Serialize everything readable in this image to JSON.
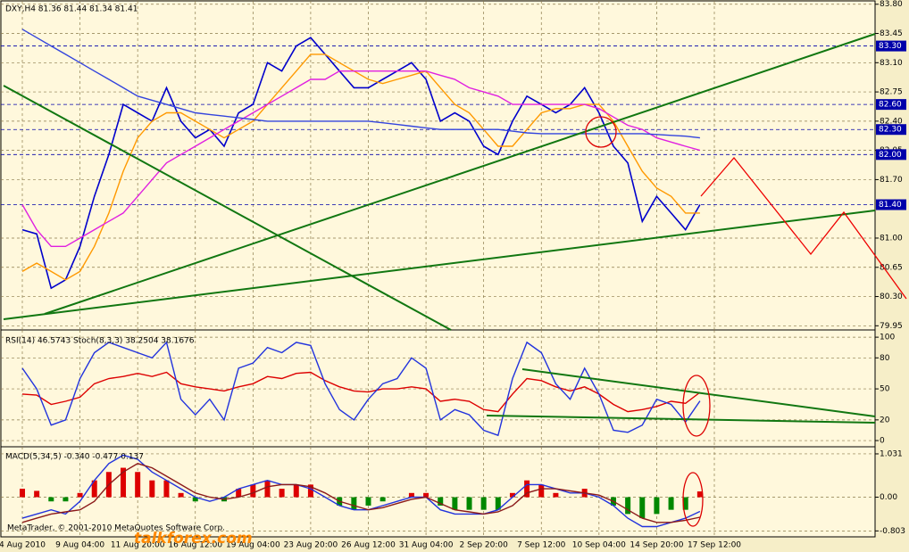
{
  "chart_data": [
    {
      "type": "line",
      "title": "DXY,H4  81.36 81.44 81.34 81.41",
      "categories": [
        "4 Aug 2010",
        null,
        null,
        null,
        "9 Aug 04:00",
        null,
        null,
        null,
        "11 Aug 20:00",
        null,
        null,
        null,
        "16 Aug 12:00",
        null,
        null,
        null,
        "19 Aug 04:00",
        null,
        null,
        null,
        "23 Aug 20:00",
        null,
        null,
        null,
        "26 Aug 12:00",
        null,
        null,
        null,
        "31 Aug 04:00",
        null,
        null,
        null,
        "2 Sep 20:00",
        null,
        null,
        null,
        "7 Sep 12:00",
        null,
        null,
        null,
        "10 Sep 04:00",
        null,
        null,
        null,
        "14 Sep 20:00",
        null,
        null,
        null,
        "17 Sep 12:00"
      ],
      "ylim": [
        79.9,
        83.84
      ],
      "yticks": [
        {
          "value": 83.8,
          "label": "83.80"
        },
        {
          "value": 83.45,
          "label": "83.45"
        },
        {
          "value": 83.1,
          "label": "83.10"
        },
        {
          "value": 82.75,
          "label": "82.75"
        },
        {
          "value": 82.4,
          "label": "82.40"
        },
        {
          "value": 82.05,
          "label": "82.05"
        },
        {
          "value": 81.7,
          "label": "81.70"
        },
        {
          "value": 81,
          "label": "81.00"
        },
        {
          "value": 80.65,
          "label": "80.65"
        },
        {
          "value": 80.3,
          "label": "80.30"
        },
        {
          "value": 79.95,
          "label": "79.95"
        }
      ],
      "levels": [
        {
          "value": 83.3,
          "label": "83.30"
        },
        {
          "value": 82.6,
          "label": "82.60"
        },
        {
          "value": 82.3,
          "label": "82.30"
        },
        {
          "value": 82,
          "label": "82.00"
        },
        {
          "value": 81.4,
          "label": "81.40"
        }
      ],
      "grid": true,
      "series": [
        {
          "name": "DXY",
          "color": "#0000cc",
          "values": [
            81.1,
            81.05,
            80.4,
            80.5,
            80.9,
            81.5,
            82.0,
            82.6,
            82.5,
            82.4,
            82.8,
            82.4,
            82.2,
            82.3,
            82.1,
            82.5,
            82.6,
            83.1,
            83.0,
            83.3,
            83.4,
            83.2,
            83.0,
            82.8,
            82.8,
            82.9,
            83.0,
            83.1,
            82.9,
            82.4,
            82.5,
            82.4,
            82.1,
            82.0,
            82.4,
            82.7,
            82.6,
            82.5,
            82.6,
            82.8,
            82.5,
            82.1,
            81.9,
            81.2,
            81.5,
            81.3,
            81.1,
            81.4,
            null
          ]
        },
        {
          "name": "MA",
          "color": "#ff9900",
          "values": [
            80.6,
            80.7,
            80.6,
            80.5,
            80.6,
            80.9,
            81.3,
            81.8,
            82.2,
            82.4,
            82.5,
            82.5,
            82.4,
            82.3,
            82.2,
            82.3,
            82.4,
            82.6,
            82.8,
            83.0,
            83.2,
            83.2,
            83.1,
            83.0,
            82.9,
            82.85,
            82.9,
            82.95,
            83.0,
            82.8,
            82.6,
            82.5,
            82.3,
            82.1,
            82.1,
            82.3,
            82.5,
            82.55,
            82.55,
            82.6,
            82.6,
            82.4,
            82.1,
            81.8,
            81.6,
            81.5,
            81.3,
            81.3,
            null
          ]
        },
        {
          "name": "MA2",
          "color": "#e020e0",
          "values": [
            81.4,
            81.1,
            80.9,
            80.9,
            81.0,
            81.1,
            81.2,
            81.3,
            81.5,
            81.7,
            81.9,
            82.0,
            82.1,
            82.2,
            82.3,
            82.4,
            82.5,
            82.6,
            82.7,
            82.8,
            82.9,
            82.9,
            83.0,
            83.0,
            83.0,
            83.0,
            83.0,
            83.0,
            83.0,
            82.95,
            82.9,
            82.8,
            82.75,
            82.7,
            82.6,
            82.6,
            82.6,
            82.6,
            82.6,
            82.6,
            82.55,
            82.45,
            82.35,
            82.3,
            82.2,
            82.15,
            82.1,
            82.05,
            null
          ]
        },
        {
          "name": "MA3",
          "color": "#3344dd",
          "values": [
            83.5,
            83.4,
            83.3,
            83.2,
            83.1,
            83.0,
            82.9,
            82.8,
            82.7,
            82.65,
            82.6,
            82.55,
            82.5,
            82.48,
            82.46,
            82.44,
            82.42,
            82.4,
            82.4,
            82.4,
            82.4,
            82.4,
            82.4,
            82.4,
            82.4,
            82.38,
            82.36,
            82.34,
            82.32,
            82.3,
            82.3,
            82.3,
            82.3,
            82.3,
            82.28,
            82.26,
            82.25,
            82.25,
            82.25,
            82.25,
            82.25,
            82.25,
            82.25,
            82.25,
            82.24,
            82.23,
            82.22,
            82.2,
            null
          ]
        }
      ]
    },
    {
      "type": "line",
      "title": "RSI(14) 46.5743  Stoch(8,3,3) 38.2504 38.1676",
      "ylim": [
        -6,
        107
      ],
      "yticks": [
        0,
        20,
        50,
        80,
        100
      ],
      "grid": true,
      "series": [
        {
          "name": "RSI(14)",
          "color": "#dd0000",
          "values": [
            45,
            44,
            35,
            38,
            42,
            55,
            60,
            62,
            65,
            62,
            66,
            55,
            52,
            50,
            48,
            52,
            55,
            62,
            60,
            65,
            66,
            58,
            52,
            48,
            47,
            50,
            50,
            52,
            50,
            38,
            40,
            38,
            30,
            28,
            45,
            60,
            58,
            52,
            48,
            52,
            45,
            35,
            28,
            30,
            33,
            38,
            36,
            46.6,
            null
          ]
        },
        {
          "name": "Stoch(8,3,3)",
          "color": "#2233dd",
          "values": [
            70,
            50,
            15,
            20,
            60,
            85,
            95,
            90,
            85,
            80,
            95,
            40,
            25,
            40,
            20,
            70,
            75,
            90,
            85,
            95,
            92,
            55,
            30,
            20,
            40,
            55,
            60,
            80,
            70,
            20,
            30,
            25,
            10,
            5,
            60,
            95,
            85,
            55,
            40,
            70,
            45,
            10,
            8,
            15,
            40,
            35,
            18,
            38.3,
            null
          ]
        }
      ]
    },
    {
      "type": "combo",
      "title": "MACD(5,34,5) -0.340 -0.477 0.137",
      "ylim": [
        -0.944,
        1.2
      ],
      "yticks": [
        {
          "value": 1.031,
          "label": "1.031"
        },
        {
          "value": 0,
          "label": "0.00"
        },
        {
          "value": -0.803,
          "label": "-0.803"
        }
      ],
      "grid": true,
      "color_up": "#dd0000",
      "color_down": "#008800",
      "series": [
        {
          "name": "Histogram",
          "type": "bar",
          "values": [
            0.2,
            0.15,
            -0.1,
            -0.1,
            0.1,
            0.4,
            0.6,
            0.7,
            0.6,
            0.4,
            0.4,
            0.1,
            -0.1,
            0.0,
            -0.1,
            0.2,
            0.3,
            0.4,
            0.2,
            0.3,
            0.3,
            0.0,
            -0.2,
            -0.3,
            -0.2,
            -0.1,
            0.0,
            0.1,
            0.1,
            -0.2,
            -0.3,
            -0.3,
            -0.3,
            -0.3,
            0.1,
            0.4,
            0.3,
            0.1,
            0.0,
            0.2,
            0.0,
            -0.2,
            -0.4,
            -0.5,
            -0.4,
            -0.3,
            -0.3,
            0.137,
            null
          ]
        },
        {
          "name": "MACD",
          "type": "line",
          "color": "#2233dd",
          "values": [
            -0.5,
            -0.4,
            -0.3,
            -0.4,
            -0.1,
            0.4,
            0.8,
            1.0,
            0.9,
            0.6,
            0.4,
            0.2,
            0.0,
            -0.1,
            0.0,
            0.2,
            0.3,
            0.4,
            0.3,
            0.3,
            0.2,
            0.0,
            -0.2,
            -0.3,
            -0.3,
            -0.2,
            -0.1,
            0.0,
            0.0,
            -0.3,
            -0.4,
            -0.4,
            -0.4,
            -0.3,
            0.0,
            0.3,
            0.3,
            0.2,
            0.1,
            0.1,
            0.0,
            -0.2,
            -0.5,
            -0.7,
            -0.7,
            -0.6,
            -0.5,
            -0.34,
            null
          ]
        },
        {
          "name": "Signal",
          "type": "line",
          "color": "#8b1a1a",
          "values": [
            -0.6,
            -0.5,
            -0.4,
            -0.35,
            -0.3,
            -0.1,
            0.3,
            0.6,
            0.8,
            0.7,
            0.5,
            0.3,
            0.1,
            0.0,
            -0.05,
            0.0,
            0.1,
            0.25,
            0.3,
            0.3,
            0.25,
            0.1,
            -0.1,
            -0.2,
            -0.3,
            -0.25,
            -0.15,
            -0.05,
            0.0,
            -0.15,
            -0.3,
            -0.35,
            -0.4,
            -0.35,
            -0.2,
            0.1,
            0.2,
            0.2,
            0.15,
            0.1,
            0.05,
            -0.1,
            -0.3,
            -0.5,
            -0.6,
            -0.6,
            -0.55,
            -0.477,
            null
          ]
        }
      ]
    }
  ],
  "copyright": "MetaTrader, © 2001-2010 MetaQuotes Software Corp.",
  "watermark": "talkforex.com"
}
